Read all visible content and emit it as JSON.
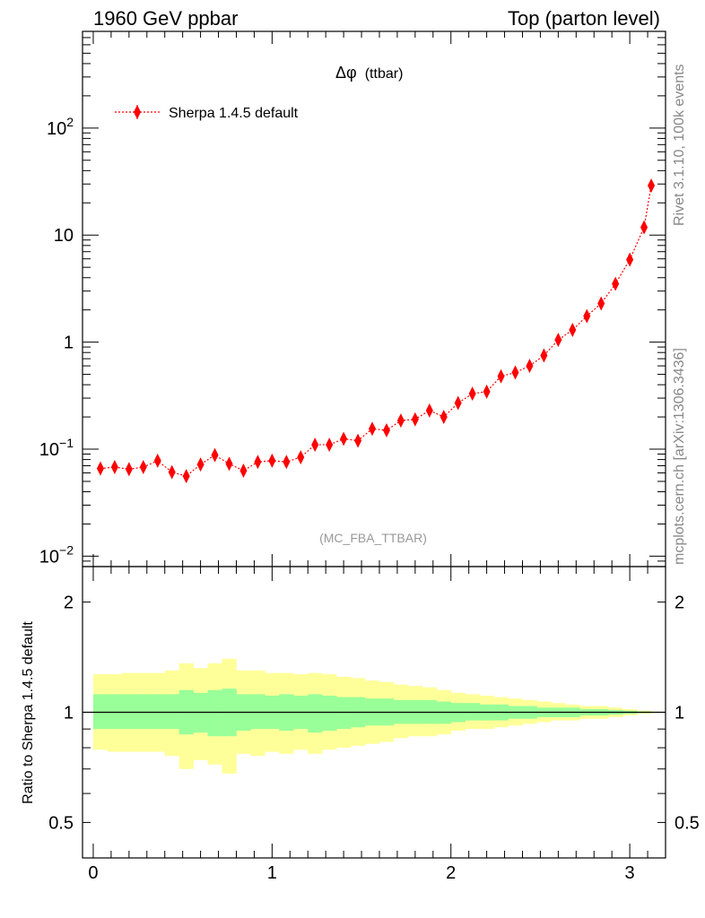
{
  "header": {
    "left": "1960 GeV ppbar",
    "right": "Top (parton level)"
  },
  "side_labels": {
    "rivet": "Rivet 3.1.10,  100k events",
    "mcplots": "mcplots.cern.ch [arXiv:1306.3436]"
  },
  "colors": {
    "series": "#ff0000",
    "band_inner": "#99ff99",
    "band_outer": "#ffff99",
    "analysis_tag": "#999999"
  },
  "chart_data": [
    {
      "type": "scatter",
      "title": "Δφ (ttbar)",
      "title_symbol": "Δφ",
      "title_rest": "(ttbar)",
      "analysis_tag": "(MC_FBA_TTBAR)",
      "yscale": "log",
      "ylim": [
        0.008,
        800
      ],
      "xlim": [
        -0.06,
        3.2
      ],
      "y_ticks": [
        {
          "value": 0.01,
          "base": "10",
          "exp": "−2"
        },
        {
          "value": 0.1,
          "base": "10",
          "exp": "−1"
        },
        {
          "value": 1,
          "base": "1",
          "exp": ""
        },
        {
          "value": 10,
          "base": "10",
          "exp": ""
        },
        {
          "value": 100,
          "base": "10",
          "exp": "2"
        }
      ],
      "legend_position": "top-left",
      "series": [
        {
          "name": "Sherpa 1.4.5 default",
          "style": "red diamonds, dotted line",
          "x": [
            0.04,
            0.12,
            0.2,
            0.28,
            0.36,
            0.44,
            0.52,
            0.6,
            0.68,
            0.76,
            0.84,
            0.92,
            1.0,
            1.08,
            1.16,
            1.24,
            1.32,
            1.4,
            1.48,
            1.56,
            1.64,
            1.72,
            1.8,
            1.88,
            1.96,
            2.04,
            2.12,
            2.2,
            2.28,
            2.36,
            2.44,
            2.52,
            2.6,
            2.68,
            2.76,
            2.84,
            2.92,
            3.0,
            3.08,
            3.12
          ],
          "y": [
            0.066,
            0.068,
            0.065,
            0.068,
            0.078,
            0.061,
            0.056,
            0.072,
            0.088,
            0.073,
            0.063,
            0.076,
            0.078,
            0.076,
            0.084,
            0.11,
            0.11,
            0.125,
            0.12,
            0.155,
            0.15,
            0.185,
            0.19,
            0.23,
            0.2,
            0.27,
            0.33,
            0.345,
            0.48,
            0.52,
            0.6,
            0.75,
            1.05,
            1.3,
            1.75,
            2.3,
            3.5,
            5.9,
            11.8,
            29
          ],
          "yerr": [
            0.07,
            0.07,
            0.07,
            0.07,
            0.09,
            0.1,
            0.11,
            0.1,
            0.1,
            0.1,
            0.09,
            0.08,
            0.08,
            0.08,
            0.08,
            0.07,
            0.07,
            0.06,
            0.06,
            0.05,
            0.05,
            0.05,
            0.05,
            0.04,
            0.04,
            0.04,
            0.03,
            0.03,
            0.03,
            0.03,
            0.02,
            0.02,
            0.02,
            0.02,
            0.02,
            0.01,
            0.01,
            0.01,
            0.01,
            0.01
          ]
        }
      ]
    },
    {
      "type": "area",
      "ylabel": "Ratio to Sherpa 1.4.5 default",
      "yscale": "log",
      "ylim": [
        0.4,
        2.5
      ],
      "xlim": [
        -0.06,
        3.2
      ],
      "y_ticks": [
        {
          "value": 0.5,
          "label": "0.5"
        },
        {
          "value": 1,
          "label": "1"
        },
        {
          "value": 2,
          "label": "2"
        }
      ],
      "x_ticks": [
        {
          "value": 0,
          "label": "0"
        },
        {
          "value": 1,
          "label": "1"
        },
        {
          "value": 2,
          "label": "2"
        },
        {
          "value": 3,
          "label": "3"
        }
      ],
      "reference_line": 1,
      "band_edges": [
        0,
        0.08,
        0.16,
        0.24,
        0.32,
        0.4,
        0.48,
        0.56,
        0.64,
        0.72,
        0.8,
        0.88,
        0.96,
        1.04,
        1.12,
        1.2,
        1.28,
        1.36,
        1.44,
        1.52,
        1.6,
        1.68,
        1.76,
        1.84,
        1.92,
        2.0,
        2.08,
        2.16,
        2.24,
        2.32,
        2.4,
        2.48,
        2.56,
        2.64,
        2.72,
        2.8,
        2.88,
        2.96,
        3.04,
        3.12,
        3.16
      ],
      "bands": [
        {
          "name": "inner",
          "lower": [
            0.9,
            0.9,
            0.9,
            0.9,
            0.9,
            0.9,
            0.87,
            0.88,
            0.86,
            0.86,
            0.89,
            0.9,
            0.9,
            0.89,
            0.9,
            0.88,
            0.89,
            0.9,
            0.91,
            0.92,
            0.92,
            0.93,
            0.93,
            0.93,
            0.93,
            0.94,
            0.95,
            0.95,
            0.95,
            0.96,
            0.96,
            0.97,
            0.97,
            0.97,
            0.98,
            0.98,
            0.985,
            0.99,
            0.995,
            0.997
          ],
          "upper": [
            1.12,
            1.12,
            1.12,
            1.12,
            1.12,
            1.12,
            1.15,
            1.13,
            1.15,
            1.16,
            1.12,
            1.12,
            1.11,
            1.12,
            1.11,
            1.12,
            1.11,
            1.1,
            1.1,
            1.09,
            1.09,
            1.08,
            1.08,
            1.08,
            1.07,
            1.06,
            1.06,
            1.05,
            1.05,
            1.04,
            1.04,
            1.03,
            1.03,
            1.03,
            1.02,
            1.02,
            1.015,
            1.01,
            1.005,
            1.003
          ]
        },
        {
          "name": "outer",
          "lower": [
            0.79,
            0.78,
            0.78,
            0.78,
            0.78,
            0.76,
            0.7,
            0.74,
            0.72,
            0.68,
            0.77,
            0.76,
            0.78,
            0.77,
            0.79,
            0.77,
            0.79,
            0.8,
            0.81,
            0.82,
            0.83,
            0.85,
            0.86,
            0.86,
            0.87,
            0.89,
            0.9,
            0.9,
            0.91,
            0.92,
            0.93,
            0.94,
            0.95,
            0.95,
            0.96,
            0.96,
            0.97,
            0.98,
            0.99,
            0.995
          ],
          "upper": [
            1.27,
            1.27,
            1.28,
            1.28,
            1.28,
            1.3,
            1.36,
            1.32,
            1.36,
            1.4,
            1.3,
            1.3,
            1.28,
            1.28,
            1.27,
            1.28,
            1.27,
            1.25,
            1.24,
            1.22,
            1.21,
            1.19,
            1.18,
            1.17,
            1.15,
            1.13,
            1.12,
            1.11,
            1.1,
            1.09,
            1.08,
            1.07,
            1.06,
            1.05,
            1.04,
            1.04,
            1.03,
            1.02,
            1.01,
            1.005
          ]
        }
      ]
    }
  ]
}
